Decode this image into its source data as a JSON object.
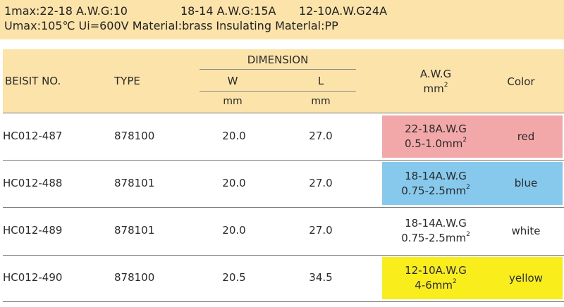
{
  "spec": {
    "line1": [
      "1max:22-18 A.W.G:10",
      "18-14 A.W.G:15A",
      "12-10A.W.G24A"
    ],
    "line2": "Umax:105℃ Ui=600V Material:brass Insulating Materlal:PP"
  },
  "header": {
    "beisit_no": "BEISIT NO.",
    "type": "TYPE",
    "dimension": "DIMENSION",
    "w": "W",
    "l": "L",
    "w_unit": "mm",
    "l_unit": "mm",
    "awg": "A.W.G",
    "awg_unit": "mm",
    "awg_unit_sup": "2",
    "color": "Color"
  },
  "rows": [
    {
      "beisit_no": "HC012-487",
      "type": "878100",
      "w": "20.0",
      "l": "27.0",
      "awg_range": "22-18A.W.G",
      "mm2": "0.5-1.0mm",
      "sup": "2",
      "color": "red",
      "swatch": "#f2a7a9"
    },
    {
      "beisit_no": "HC012-488",
      "type": "878101",
      "w": "20.0",
      "l": "27.0",
      "awg_range": "18-14A.W.G",
      "mm2": "0.75-2.5mm",
      "sup": "2",
      "color": "blue",
      "swatch": "#86c9ec"
    },
    {
      "beisit_no": "HC012-489",
      "type": "878101",
      "w": "20.0",
      "l": "27.0",
      "awg_range": "18-14A.W.G",
      "mm2": "0.75-2.5mm",
      "sup": "2",
      "color": "white",
      "swatch": "#ffffff"
    },
    {
      "beisit_no": "HC012-490",
      "type": "878100",
      "w": "20.5",
      "l": "34.5",
      "awg_range": "12-10A.W.G",
      "mm2": "4-6mm",
      "sup": "2",
      "color": "yellow",
      "swatch": "#f9ee1c"
    }
  ]
}
